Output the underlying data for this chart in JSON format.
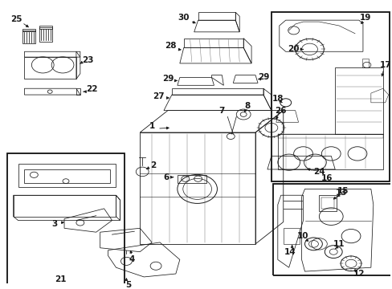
{
  "bg_color": "#ffffff",
  "fig_width": 4.89,
  "fig_height": 3.6,
  "dpi": 100,
  "img_data": ""
}
